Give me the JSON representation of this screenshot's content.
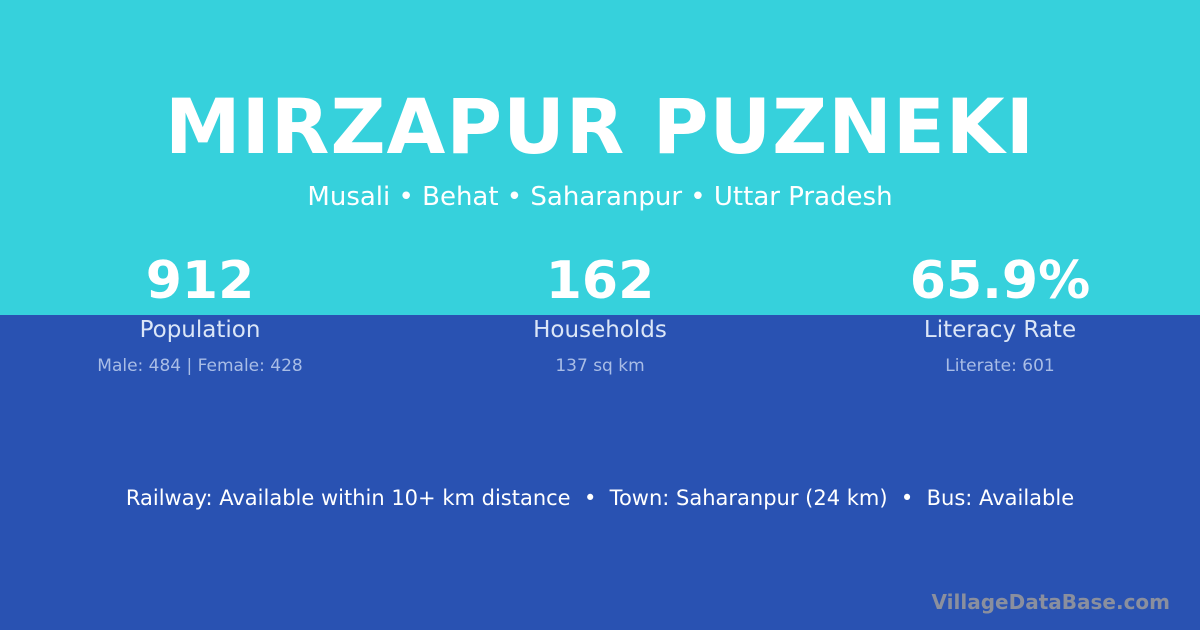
{
  "colors": {
    "top_bg": "#36d1dc",
    "bottom_bg": "#2952b2"
  },
  "title": "MIRZAPUR PUZNEKI",
  "subtitle": "Musali • Behat • Saharanpur • Uttar Pradesh",
  "stats": [
    {
      "value": "912",
      "label": "Population",
      "detail": "Male: 484 | Female: 428"
    },
    {
      "value": "162",
      "label": "Households",
      "detail": "137 sq km"
    },
    {
      "value": "65.9%",
      "label": "Literacy Rate",
      "detail": "Literate: 601"
    }
  ],
  "info": "Railway: Available within 10+ km distance  •  Town: Saharanpur (24 km)  •  Bus: Available",
  "watermark": "VillageDataBase.com"
}
